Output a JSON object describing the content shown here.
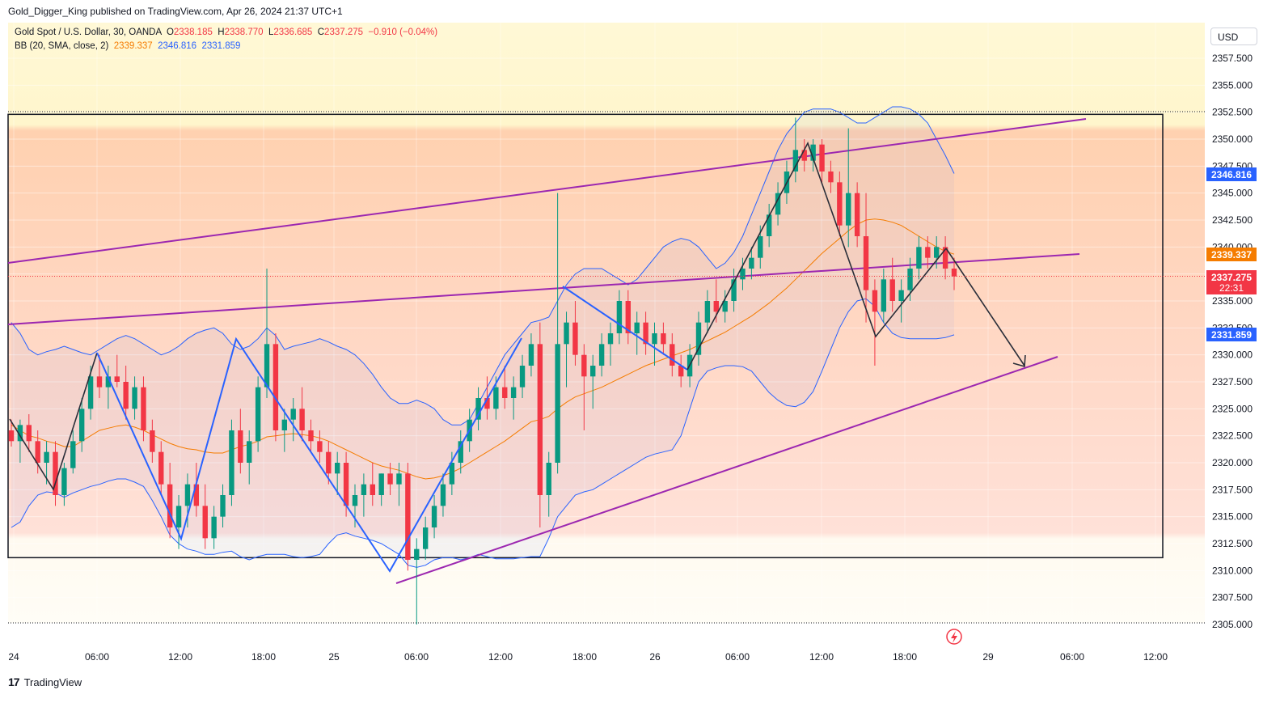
{
  "header": {
    "publisher_line": "Gold_Digger_King published on TradingView.com, Apr 26, 2024 21:37 UTC+1"
  },
  "legend": {
    "symbol": "Gold Spot / U.S. Dollar, 30, OANDA",
    "open_label": "O",
    "open": "2338.185",
    "high_label": "H",
    "high": "2338.770",
    "low_label": "L",
    "low": "2336.685",
    "close_label": "C",
    "close": "2337.275",
    "change": "−0.910 (−0.04%)",
    "bb_label": "BB (20, SMA, close, 2)",
    "bb_basis": "2339.337",
    "bb_upper": "2346.816",
    "bb_lower": "2331.859"
  },
  "currency": "USD",
  "colors": {
    "up": "#089981",
    "down": "#f23645",
    "basis": "#f57c00",
    "band": "#2962ff",
    "channel": "#9c27b0",
    "pattern_blue": "#2962ff"
  },
  "price_badges": {
    "upper": "2346.816",
    "basis": "2339.337",
    "last": "2337.275",
    "countdown": "22:31",
    "lower": "2331.859"
  },
  "footer": {
    "brand": "TradingView"
  },
  "chart_data": {
    "type": "candlestick",
    "symbol": "XAUUSD",
    "timeframe": "30",
    "ylim": [
      2305,
      2357.5
    ],
    "y_ticks": [
      "2357.500",
      "2355.000",
      "2352.500",
      "2350.000",
      "2347.500",
      "2345.000",
      "2342.500",
      "2340.000",
      "2337.500",
      "2335.000",
      "2332.500",
      "2330.000",
      "2327.500",
      "2325.000",
      "2322.500",
      "2320.000",
      "2317.500",
      "2315.000",
      "2312.500",
      "2310.000",
      "2307.500",
      "2305.000"
    ],
    "x_ticks": [
      "24",
      "06:00",
      "12:00",
      "18:00",
      "25",
      "06:00",
      "12:00",
      "18:00",
      "26",
      "06:00",
      "12:00",
      "18:00",
      "29",
      "06:00",
      "12:00"
    ],
    "range_box": {
      "top": 2352.3,
      "bottom": 2311.2
    },
    "candles": [
      [
        2323,
        2324,
        2321.5,
        2322
      ],
      [
        2322,
        2324,
        2320,
        2323.5
      ],
      [
        2323.5,
        2324.5,
        2321,
        2322
      ],
      [
        2322,
        2323,
        2319,
        2320
      ],
      [
        2320,
        2322,
        2318,
        2321
      ],
      [
        2321,
        2322,
        2316,
        2317
      ],
      [
        2317,
        2320,
        2316,
        2319.5
      ],
      [
        2319.5,
        2323,
        2319,
        2322
      ],
      [
        2322,
        2326,
        2321,
        2325
      ],
      [
        2325,
        2329,
        2324,
        2328
      ],
      [
        2328,
        2330,
        2326,
        2327
      ],
      [
        2327,
        2329,
        2325,
        2328
      ],
      [
        2328,
        2330,
        2327,
        2327.5
      ],
      [
        2327.5,
        2329,
        2324,
        2325
      ],
      [
        2325,
        2328,
        2324,
        2327
      ],
      [
        2327,
        2328,
        2322,
        2323
      ],
      [
        2323,
        2324,
        2320,
        2321
      ],
      [
        2321,
        2322,
        2317,
        2318
      ],
      [
        2318,
        2320,
        2313,
        2314
      ],
      [
        2314,
        2317,
        2312,
        2316
      ],
      [
        2316,
        2319,
        2314,
        2318
      ],
      [
        2318,
        2320,
        2315,
        2316
      ],
      [
        2316,
        2318,
        2312,
        2313
      ],
      [
        2313,
        2316,
        2312,
        2315
      ],
      [
        2315,
        2318,
        2314,
        2317
      ],
      [
        2317,
        2324,
        2316,
        2323
      ],
      [
        2323,
        2325,
        2319,
        2320
      ],
      [
        2320,
        2323,
        2318,
        2322
      ],
      [
        2322,
        2328,
        2321,
        2327
      ],
      [
        2327,
        2338,
        2326,
        2331
      ],
      [
        2331,
        2332,
        2322,
        2323
      ],
      [
        2323,
        2325,
        2321,
        2324
      ],
      [
        2324,
        2326,
        2322,
        2325
      ],
      [
        2325,
        2327,
        2322,
        2323
      ],
      [
        2323,
        2324,
        2321,
        2322
      ],
      [
        2322,
        2323,
        2320,
        2321
      ],
      [
        2321,
        2322,
        2318,
        2319
      ],
      [
        2319,
        2321,
        2317,
        2320
      ],
      [
        2320,
        2321,
        2315,
        2316
      ],
      [
        2316,
        2318,
        2314,
        2317
      ],
      [
        2317,
        2319,
        2315,
        2318
      ],
      [
        2318,
        2320,
        2316,
        2317
      ],
      [
        2317,
        2319,
        2316,
        2319
      ],
      [
        2319,
        2320,
        2317,
        2318
      ],
      [
        2318,
        2320,
        2316,
        2319
      ],
      [
        2319,
        2320,
        2310,
        2311
      ],
      [
        2311,
        2313,
        2305,
        2312
      ],
      [
        2312,
        2315,
        2311,
        2314
      ],
      [
        2314,
        2317,
        2313,
        2316
      ],
      [
        2316,
        2319,
        2315,
        2318
      ],
      [
        2318,
        2321,
        2317,
        2320
      ],
      [
        2320,
        2323,
        2319,
        2322
      ],
      [
        2322,
        2325,
        2321,
        2324
      ],
      [
        2324,
        2327,
        2323,
        2326
      ],
      [
        2326,
        2328,
        2324,
        2325
      ],
      [
        2325,
        2328,
        2324,
        2327
      ],
      [
        2327,
        2329,
        2325,
        2326
      ],
      [
        2326,
        2328,
        2324,
        2327
      ],
      [
        2327,
        2330,
        2326,
        2329
      ],
      [
        2329,
        2332,
        2328,
        2331
      ],
      [
        2331,
        2333,
        2314,
        2317
      ],
      [
        2317,
        2321,
        2315,
        2320
      ],
      [
        2320,
        2345,
        2319,
        2331
      ],
      [
        2331,
        2334,
        2327,
        2333
      ],
      [
        2333,
        2335,
        2329,
        2330
      ],
      [
        2330,
        2331,
        2323,
        2328
      ],
      [
        2328,
        2330,
        2325,
        2329
      ],
      [
        2329,
        2332,
        2328,
        2331
      ],
      [
        2331,
        2333,
        2329,
        2332
      ],
      [
        2332,
        2336,
        2331,
        2335
      ],
      [
        2335,
        2336,
        2331,
        2332
      ],
      [
        2332,
        2334,
        2330,
        2333
      ],
      [
        2333,
        2334,
        2330,
        2331
      ],
      [
        2331,
        2333,
        2329,
        2332
      ],
      [
        2332,
        2333,
        2330,
        2331
      ],
      [
        2331,
        2332,
        2328,
        2329
      ],
      [
        2329,
        2330,
        2327,
        2328
      ],
      [
        2328,
        2331,
        2327,
        2330
      ],
      [
        2330,
        2334,
        2329,
        2333
      ],
      [
        2333,
        2336,
        2332,
        2335
      ],
      [
        2335,
        2337,
        2333,
        2334
      ],
      [
        2334,
        2336,
        2333,
        2335
      ],
      [
        2335,
        2338,
        2334,
        2337
      ],
      [
        2337,
        2339,
        2336,
        2338
      ],
      [
        2338,
        2340,
        2337,
        2339
      ],
      [
        2339,
        2342,
        2338,
        2341
      ],
      [
        2341,
        2344,
        2340,
        2343
      ],
      [
        2343,
        2346,
        2342,
        2345
      ],
      [
        2345,
        2348,
        2344,
        2347
      ],
      [
        2347,
        2352,
        2346,
        2349
      ],
      [
        2349,
        2350,
        2347,
        2348
      ],
      [
        2348,
        2350,
        2347,
        2349.5
      ],
      [
        2349.5,
        2350,
        2346,
        2347
      ],
      [
        2347,
        2348,
        2345,
        2346
      ],
      [
        2346,
        2347,
        2341,
        2342
      ],
      [
        2342,
        2351,
        2340,
        2345
      ],
      [
        2345,
        2346,
        2340,
        2341
      ],
      [
        2341,
        2345,
        2333,
        2336
      ],
      [
        2336,
        2337,
        2329,
        2334
      ],
      [
        2334,
        2338,
        2333,
        2337
      ],
      [
        2337,
        2339,
        2334,
        2335
      ],
      [
        2335,
        2337,
        2333,
        2336
      ],
      [
        2336,
        2339,
        2335,
        2338
      ],
      [
        2338,
        2341,
        2337,
        2340
      ],
      [
        2340,
        2341,
        2338,
        2339
      ],
      [
        2339,
        2341,
        2338,
        2340
      ],
      [
        2340,
        2341,
        2337,
        2338
      ],
      [
        2338,
        2339,
        2336,
        2337.275
      ]
    ],
    "bb_basis": [
      2323.5,
      2323,
      2322.5,
      2322.3,
      2322,
      2321.8,
      2321.5,
      2321.5,
      2322,
      2322.5,
      2323,
      2323.2,
      2323.4,
      2323.5,
      2323.3,
      2323,
      2322.6,
      2322.2,
      2321.8,
      2321.5,
      2321.3,
      2321.2,
      2321,
      2320.9,
      2320.9,
      2321.2,
      2321.5,
      2321.7,
      2322,
      2322.4,
      2322.5,
      2322.6,
      2322.7,
      2322.6,
      2322.5,
      2322.3,
      2322,
      2321.6,
      2321.2,
      2320.8,
      2320.4,
      2320,
      2319.7,
      2319.5,
      2319.3,
      2319,
      2318.7,
      2318.5,
      2318.6,
      2318.8,
      2319.1,
      2319.5,
      2320,
      2320.5,
      2321,
      2321.5,
      2322,
      2322.6,
      2323.2,
      2323.8,
      2324,
      2324.3,
      2325,
      2325.6,
      2326.1,
      2326.4,
      2326.7,
      2327,
      2327.4,
      2327.8,
      2328.2,
      2328.6,
      2329,
      2329.3,
      2329.6,
      2329.9,
      2330.2,
      2330.5,
      2330.9,
      2331.3,
      2331.7,
      2332.1,
      2332.6,
      2333.1,
      2333.6,
      2334.2,
      2334.8,
      2335.5,
      2336.2,
      2337,
      2337.8,
      2338.6,
      2339.4,
      2340.1,
      2340.8,
      2341.5,
      2342.1,
      2342.5,
      2342.6,
      2342.5,
      2342.3,
      2342,
      2341.5,
      2341,
      2340.5,
      2340,
      2339.6,
      2339.337
    ],
    "bb_upper": [
      2333,
      2332,
      2330.5,
      2330,
      2330.3,
      2330.5,
      2330.8,
      2330.5,
      2330.2,
      2330,
      2330.5,
      2331,
      2331.5,
      2331.8,
      2331.5,
      2331,
      2330.5,
      2330,
      2330.3,
      2330.8,
      2331.5,
      2332,
      2332.3,
      2332.5,
      2332,
      2331,
      2330.5,
      2330.8,
      2331.5,
      2332.5,
      2331.8,
      2330.5,
      2330.8,
      2331,
      2331.2,
      2331.5,
      2331.2,
      2330.8,
      2330.5,
      2330,
      2329.2,
      2328.2,
      2327,
      2326,
      2325.5,
      2325.5,
      2325.8,
      2325.5,
      2325,
      2324,
      2323.5,
      2323.5,
      2324,
      2325.5,
      2327,
      2328.5,
      2330,
      2331,
      2332,
      2333,
      2333.2,
      2333.5,
      2335,
      2336.5,
      2337.5,
      2338,
      2338,
      2338,
      2337.5,
      2337,
      2336.5,
      2337,
      2338,
      2339,
      2340,
      2340.5,
      2340.8,
      2340.6,
      2340,
      2339,
      2338,
      2338.5,
      2339.5,
      2341,
      2343,
      2345,
      2347,
      2349,
      2350.5,
      2351.5,
      2352.5,
      2352.8,
      2352.8,
      2352.8,
      2352.5,
      2352,
      2351.5,
      2351.5,
      2352,
      2352.5,
      2353,
      2353,
      2352.8,
      2352.3,
      2351.5,
      2350,
      2348.5,
      2346.816
    ],
    "bb_lower": [
      2314,
      2314.5,
      2316,
      2317,
      2317.3,
      2317.2,
      2316.8,
      2317.2,
      2317.5,
      2317.8,
      2318,
      2318.3,
      2318.5,
      2318.5,
      2318.2,
      2317.8,
      2316.5,
      2315,
      2313.3,
      2312.5,
      2312,
      2311.8,
      2311.5,
      2311.5,
      2311.7,
      2311.8,
      2311.3,
      2311,
      2311.3,
      2311.5,
      2311.5,
      2311.5,
      2311.3,
      2311.2,
      2311.3,
      2311.5,
      2312.5,
      2313.3,
      2313.5,
      2313.2,
      2313,
      2312.8,
      2312.5,
      2312,
      2311.5,
      2310.5,
      2310.3,
      2310.5,
      2311,
      2311.2,
      2311.2,
      2311,
      2311.2,
      2311.5,
      2311.3,
      2311.1,
      2311.1,
      2311.1,
      2311.2,
      2311.3,
      2311.3,
      2313,
      2315,
      2316,
      2317,
      2317.3,
      2317.5,
      2318,
      2318.5,
      2319,
      2319.5,
      2320,
      2320.5,
      2320.8,
      2321,
      2321.2,
      2322.5,
      2325,
      2327.5,
      2328.5,
      2328.8,
      2329,
      2329,
      2328.9,
      2328.5,
      2327.5,
      2326.5,
      2325.8,
      2325.3,
      2325.2,
      2325.6,
      2326.6,
      2328.5,
      2330.5,
      2332.5,
      2334,
      2335,
      2335.2,
      2334.5,
      2333,
      2332,
      2331.6,
      2331.5,
      2331.5,
      2331.5,
      2331.5,
      2331.6,
      2331.859
    ]
  }
}
